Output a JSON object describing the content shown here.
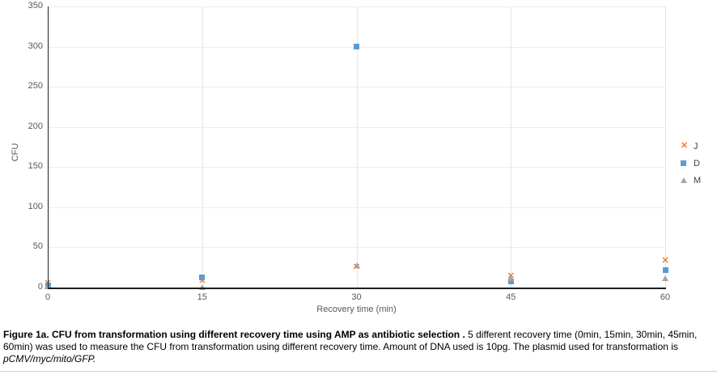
{
  "chart_data": {
    "type": "scatter",
    "x": [
      0,
      15,
      30,
      45,
      60
    ],
    "xlabel": "Recovery time (min)",
    "ylabel": "CFU",
    "ylim": [
      0,
      350
    ],
    "yticks": [
      0,
      50,
      100,
      150,
      200,
      250,
      300,
      350
    ],
    "xticks": [
      0,
      15,
      30,
      45,
      60
    ],
    "grid": true,
    "legend_position": "right",
    "series": [
      {
        "name": "J",
        "marker": "x",
        "color": "#ED7D31",
        "values": [
          5,
          8,
          25,
          14,
          33
        ]
      },
      {
        "name": "D",
        "marker": "square",
        "color": "#5B9BD5",
        "values": [
          3,
          13,
          300,
          8,
          22
        ]
      },
      {
        "name": "M",
        "marker": "triangle",
        "color": "#A5A5A5",
        "values": [
          2,
          1,
          28,
          12,
          12
        ]
      }
    ]
  },
  "caption": {
    "bold": "Figure 1a. CFU from transformation using different recovery time using AMP as antibiotic selection .",
    "regular": " 5 different recovery time (0min, 15min, 30min, 45min, 60min) was used to measure the CFU from transformation using different recovery time. Amount of DNA used is 10pg. The plasmid used for transformation is ",
    "italic": "pCMV/myc/mito/GFP."
  },
  "colors": {
    "axis": "#1f1f1f",
    "gridline": "#ececec",
    "tick_text": "#595959",
    "series_j_orange": "#ED7D31",
    "series_d_blue": "#5B9BD5",
    "series_m_gray": "#A5A5A5"
  }
}
